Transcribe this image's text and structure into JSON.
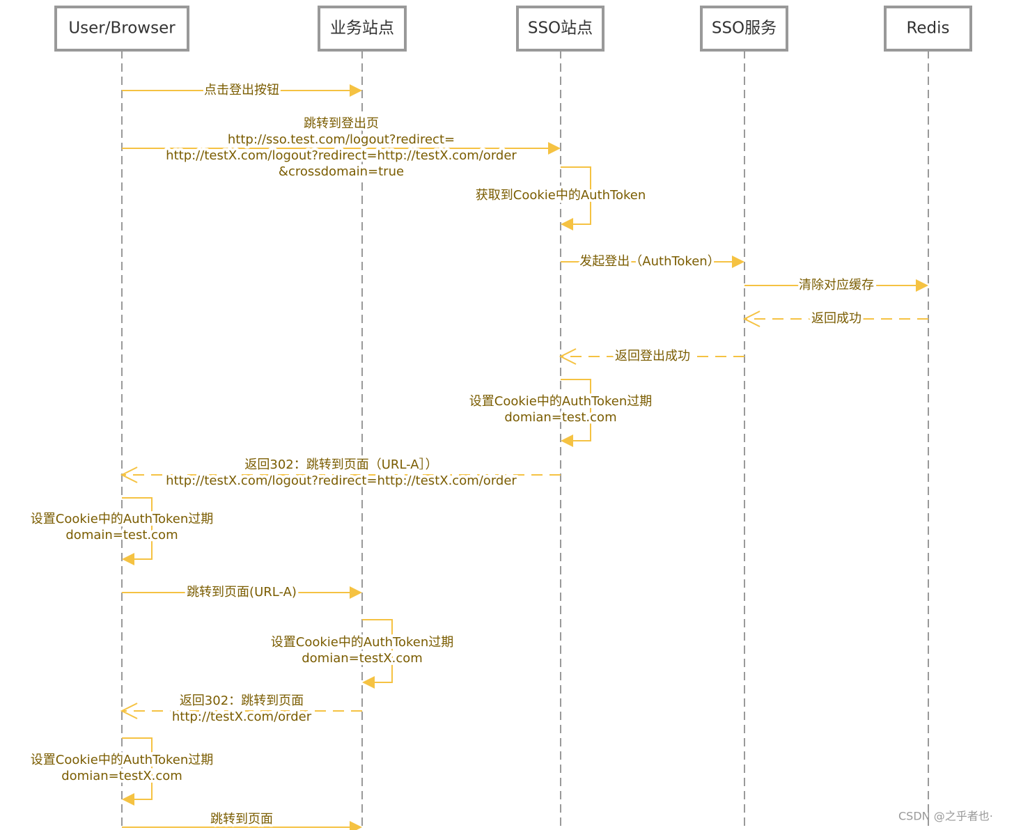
{
  "participants": [
    "User/Browser",
    "业务站点",
    "SSO站点",
    "SSO服务",
    "Redis"
  ],
  "messages": [
    {
      "lines": [
        "点击登出按钮"
      ]
    },
    {
      "lines": [
        "跳转到登出页",
        "http://sso.test.com/logout?redirect=",
        "http://testX.com/logout?redirect=http://testX.com/order",
        "&crossdomain=true"
      ]
    },
    {
      "lines": [
        "获取到Cookie中的AuthToken"
      ]
    },
    {
      "lines": [
        "发起登出（AuthToken）"
      ]
    },
    {
      "lines": [
        "清除对应缓存"
      ]
    },
    {
      "lines": [
        "返回成功"
      ]
    },
    {
      "lines": [
        "返回登出成功"
      ]
    },
    {
      "lines": [
        "设置Cookie中的AuthToken过期",
        "domian=test.com"
      ]
    },
    {
      "lines": [
        "返回302：跳转到页面（URL-A］）",
        "http://testX.com/logout?redirect=http://testX.com/order"
      ]
    },
    {
      "lines": [
        "设置Cookie中的AuthToken过期",
        "domain=test.com"
      ]
    },
    {
      "lines": [
        "跳转到页面(URL-A)"
      ]
    },
    {
      "lines": [
        "设置Cookie中的AuthToken过期",
        "domian=testX.com"
      ]
    },
    {
      "lines": [
        "返回302：跳转到页面",
        "http://testX.com/order"
      ]
    },
    {
      "lines": [
        "设置Cookie中的AuthToken过期",
        "domian=testX.com"
      ]
    },
    {
      "lines": [
        "跳转到页面"
      ]
    }
  ],
  "watermark": "CSDN @之乎者也·"
}
